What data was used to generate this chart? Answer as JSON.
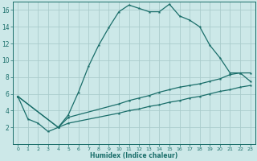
{
  "title": "",
  "xlabel": "Humidex (Indice chaleur)",
  "bg_color": "#cce8e8",
  "grid_color": "#aacccc",
  "line_color": "#1a6e6a",
  "xlim": [
    -0.5,
    23.5
  ],
  "ylim": [
    0,
    17
  ],
  "xticks": [
    0,
    1,
    2,
    3,
    4,
    5,
    6,
    7,
    8,
    9,
    10,
    11,
    12,
    13,
    14,
    15,
    16,
    17,
    18,
    19,
    20,
    21,
    22,
    23
  ],
  "yticks": [
    2,
    4,
    6,
    8,
    10,
    12,
    14,
    16
  ],
  "ytick_labels": [
    "2",
    "4",
    "6",
    "8",
    "10",
    "12",
    "14",
    "16"
  ],
  "line1_x": [
    0,
    1,
    2,
    3,
    4,
    5,
    6,
    7,
    8,
    9,
    10,
    11,
    12,
    13,
    14,
    15,
    16,
    17,
    18,
    19,
    20,
    21,
    22,
    23
  ],
  "line1_y": [
    5.7,
    3.0,
    2.5,
    1.5,
    2.0,
    3.5,
    6.2,
    9.3,
    11.8,
    13.9,
    15.8,
    16.6,
    16.2,
    15.8,
    15.8,
    16.7,
    15.3,
    14.8,
    14.0,
    11.8,
    10.3,
    8.5,
    8.5,
    7.5
  ],
  "line2_x": [
    0,
    4,
    5,
    10,
    11,
    12,
    13,
    14,
    15,
    16,
    17,
    18,
    19,
    20,
    21,
    22,
    23
  ],
  "line2_y": [
    5.7,
    2.0,
    3.2,
    4.8,
    5.2,
    5.5,
    5.8,
    6.2,
    6.5,
    6.8,
    7.0,
    7.2,
    7.5,
    7.8,
    8.3,
    8.5,
    8.5
  ],
  "line3_x": [
    0,
    4,
    5,
    10,
    11,
    12,
    13,
    14,
    15,
    16,
    17,
    18,
    19,
    20,
    21,
    22,
    23
  ],
  "line3_y": [
    5.7,
    2.0,
    2.5,
    3.7,
    4.0,
    4.2,
    4.5,
    4.7,
    5.0,
    5.2,
    5.5,
    5.7,
    6.0,
    6.3,
    6.5,
    6.8,
    7.0
  ]
}
